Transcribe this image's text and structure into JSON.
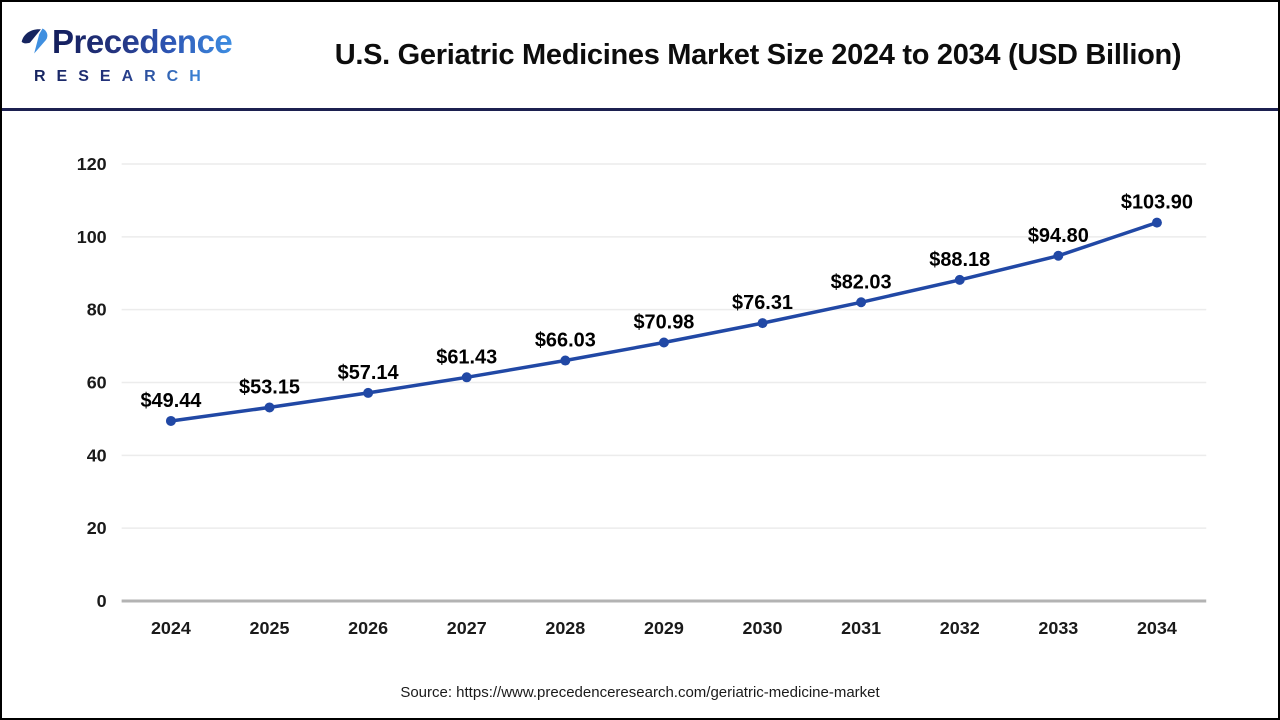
{
  "header": {
    "logo": {
      "name": "Precedence",
      "sub": "RESEARCH"
    },
    "title": "U.S. Geriatric Medicines Market Size 2024 to 2034 (USD Billion)"
  },
  "chart_data": {
    "type": "line",
    "title": "U.S. Geriatric Medicines Market Size 2024 to 2034 (USD Billion)",
    "categories": [
      "2024",
      "2025",
      "2026",
      "2027",
      "2028",
      "2029",
      "2030",
      "2031",
      "2032",
      "2033",
      "2034"
    ],
    "values": [
      49.44,
      53.15,
      57.14,
      61.43,
      66.03,
      70.98,
      76.31,
      82.03,
      88.18,
      94.8,
      103.9
    ],
    "point_labels": [
      "$49.44",
      "$53.15",
      "$57.14",
      "$61.43",
      "$66.03",
      "$70.98",
      "$76.31",
      "$82.03",
      "$88.18",
      "$94.80",
      "$103.90"
    ],
    "xlabel": "",
    "ylabel": "",
    "ylim": [
      0,
      120
    ],
    "yticks": [
      0,
      20,
      40,
      60,
      80,
      100,
      120
    ],
    "grid": true,
    "legend": "none",
    "line_color": "#2148a5",
    "marker": "circle"
  },
  "footer": {
    "source": "Source: https://www.precedenceresearch.com/geriatric-medicine-market"
  },
  "colors": {
    "line": "#2148a5",
    "gridline": "#ececec",
    "axis_line": "#b3b3b3",
    "header_divider": "#1c2050",
    "page_border": "#000000",
    "title_text": "#0d0d0d",
    "tick_text": "#1a1a1a",
    "data_label_text": "#000000",
    "logo_navy": "#16245f",
    "logo_blue": "#3e8ee2"
  }
}
